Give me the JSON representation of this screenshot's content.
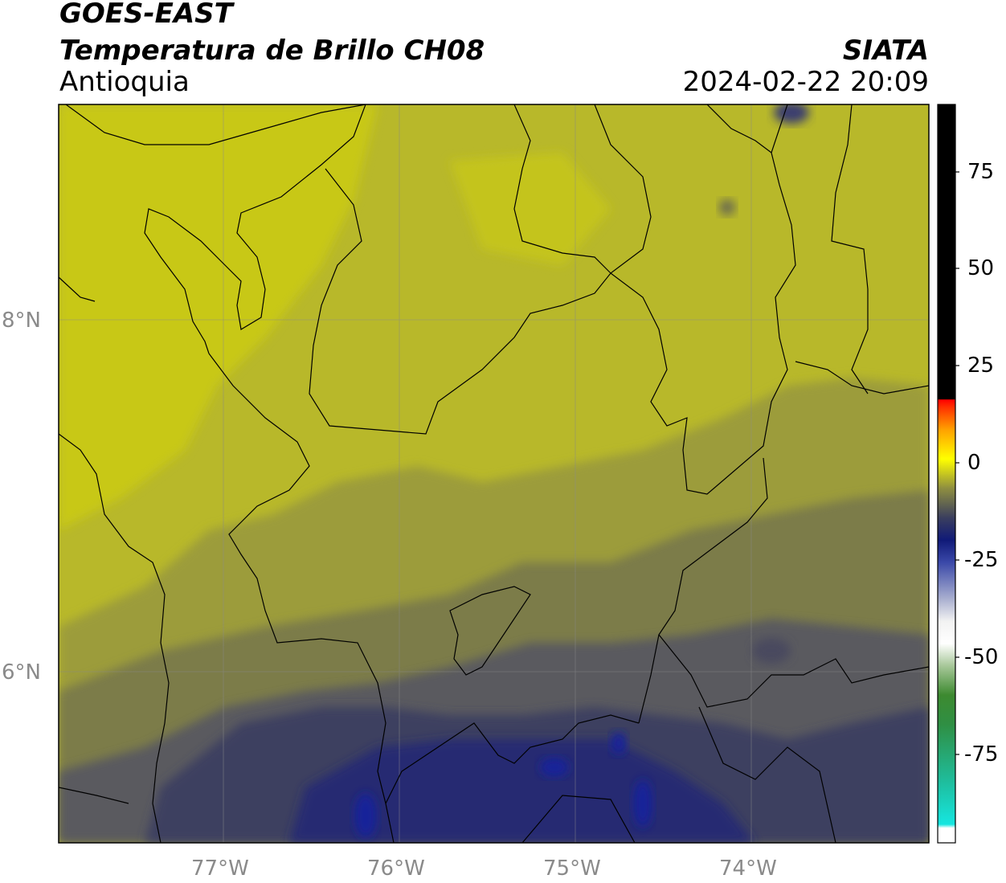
{
  "header": {
    "line1": "GOES-EAST",
    "line2": "Temperatura de Brillo CH08",
    "region": "Antioquia",
    "brand": "SIATA",
    "datetime": "2024-02-22 20:09"
  },
  "map": {
    "lat_labels": [
      "8°N",
      "6°N"
    ],
    "lon_labels": [
      "77°W",
      "76°W",
      "75°W",
      "74°W"
    ],
    "colors": {
      "yellow_warm": "#c8c818",
      "yellow": "#b8b82a",
      "olive": "#9c9c3a",
      "olive_dark": "#7c7c4a",
      "slate": "#5a5a5e",
      "navy_gray": "#3e4160",
      "navy": "#252b72",
      "deep_blue": "#14209a"
    }
  },
  "colorbar": {
    "tick_labels": [
      "75",
      "50",
      "25",
      "0",
      "-25",
      "-50",
      "-75"
    ]
  }
}
